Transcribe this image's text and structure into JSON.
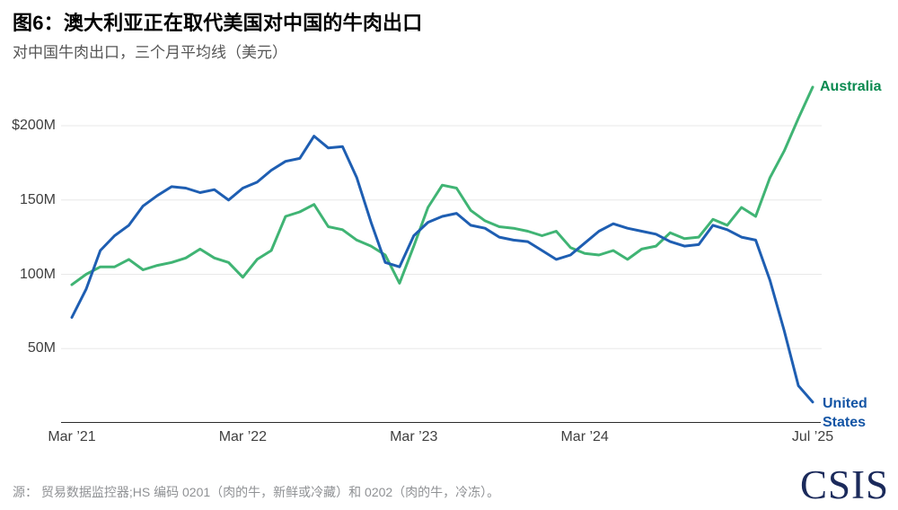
{
  "header": {
    "title": "图6：澳大利亚正在取代美国对中国的牛肉出口",
    "subtitle": "对中国牛肉出口，三个月平均线（美元）"
  },
  "chart_data": {
    "type": "line",
    "title": "图6：澳大利亚正在取代美国对中国的牛肉出口",
    "subtitle": "对中国牛肉出口，三个月平均线（美元）",
    "unit": "USD, millions",
    "x_monthly_start": "Mar 2021",
    "x_monthly_end": "Jul 2025",
    "ylim": [
      0,
      230
    ],
    "grid": "horizontal",
    "legend_position": "line-end-labels",
    "y_ticks": [
      {
        "label": "$200M",
        "value": 200
      },
      {
        "label": "150M",
        "value": 150
      },
      {
        "label": "100M",
        "value": 100
      },
      {
        "label": "50M",
        "value": 50
      }
    ],
    "x_ticks": [
      {
        "label": "Mar ’21",
        "month": 0
      },
      {
        "label": "Mar ’22",
        "month": 12
      },
      {
        "label": "Mar ’23",
        "month": 24
      },
      {
        "label": "Mar ’24",
        "month": 36
      },
      {
        "label": "Jul ’25",
        "month": 52
      }
    ],
    "series": [
      {
        "name": "Australia",
        "color": "#40b474",
        "label_color": "#0a8a50",
        "values": [
          93,
          100,
          105,
          105,
          110,
          103,
          106,
          108,
          111,
          117,
          111,
          108,
          98,
          110,
          116,
          139,
          142,
          147,
          132,
          130,
          123,
          119,
          113,
          94,
          119,
          145,
          160,
          158,
          143,
          136,
          132,
          131,
          129,
          126,
          129,
          118,
          114,
          113,
          116,
          110,
          117,
          119,
          128,
          124,
          125,
          137,
          133,
          145,
          139,
          165,
          183,
          205,
          226
        ]
      },
      {
        "name": "United States",
        "color": "#1e5eb2",
        "label_color": "#1455a5",
        "values": [
          71,
          90,
          116,
          126,
          133,
          146,
          153,
          159,
          158,
          155,
          157,
          150,
          158,
          162,
          170,
          176,
          178,
          193,
          185,
          186,
          165,
          135,
          108,
          105,
          126,
          135,
          139,
          141,
          133,
          131,
          125,
          123,
          122,
          116,
          110,
          113,
          121,
          129,
          134,
          131,
          129,
          127,
          122,
          119,
          120,
          133,
          130,
          125,
          123,
          96,
          62,
          25,
          14
        ]
      }
    ],
    "axis_color": "#2b2b2b",
    "gridline_color": "#e8e8e8"
  },
  "footer": {
    "source": "源：  贸易数据监控器;HS 编码 0201（肉的牛，新鲜或冷藏）和 0202（肉的牛，冷冻）。",
    "logo": "CSIS"
  }
}
